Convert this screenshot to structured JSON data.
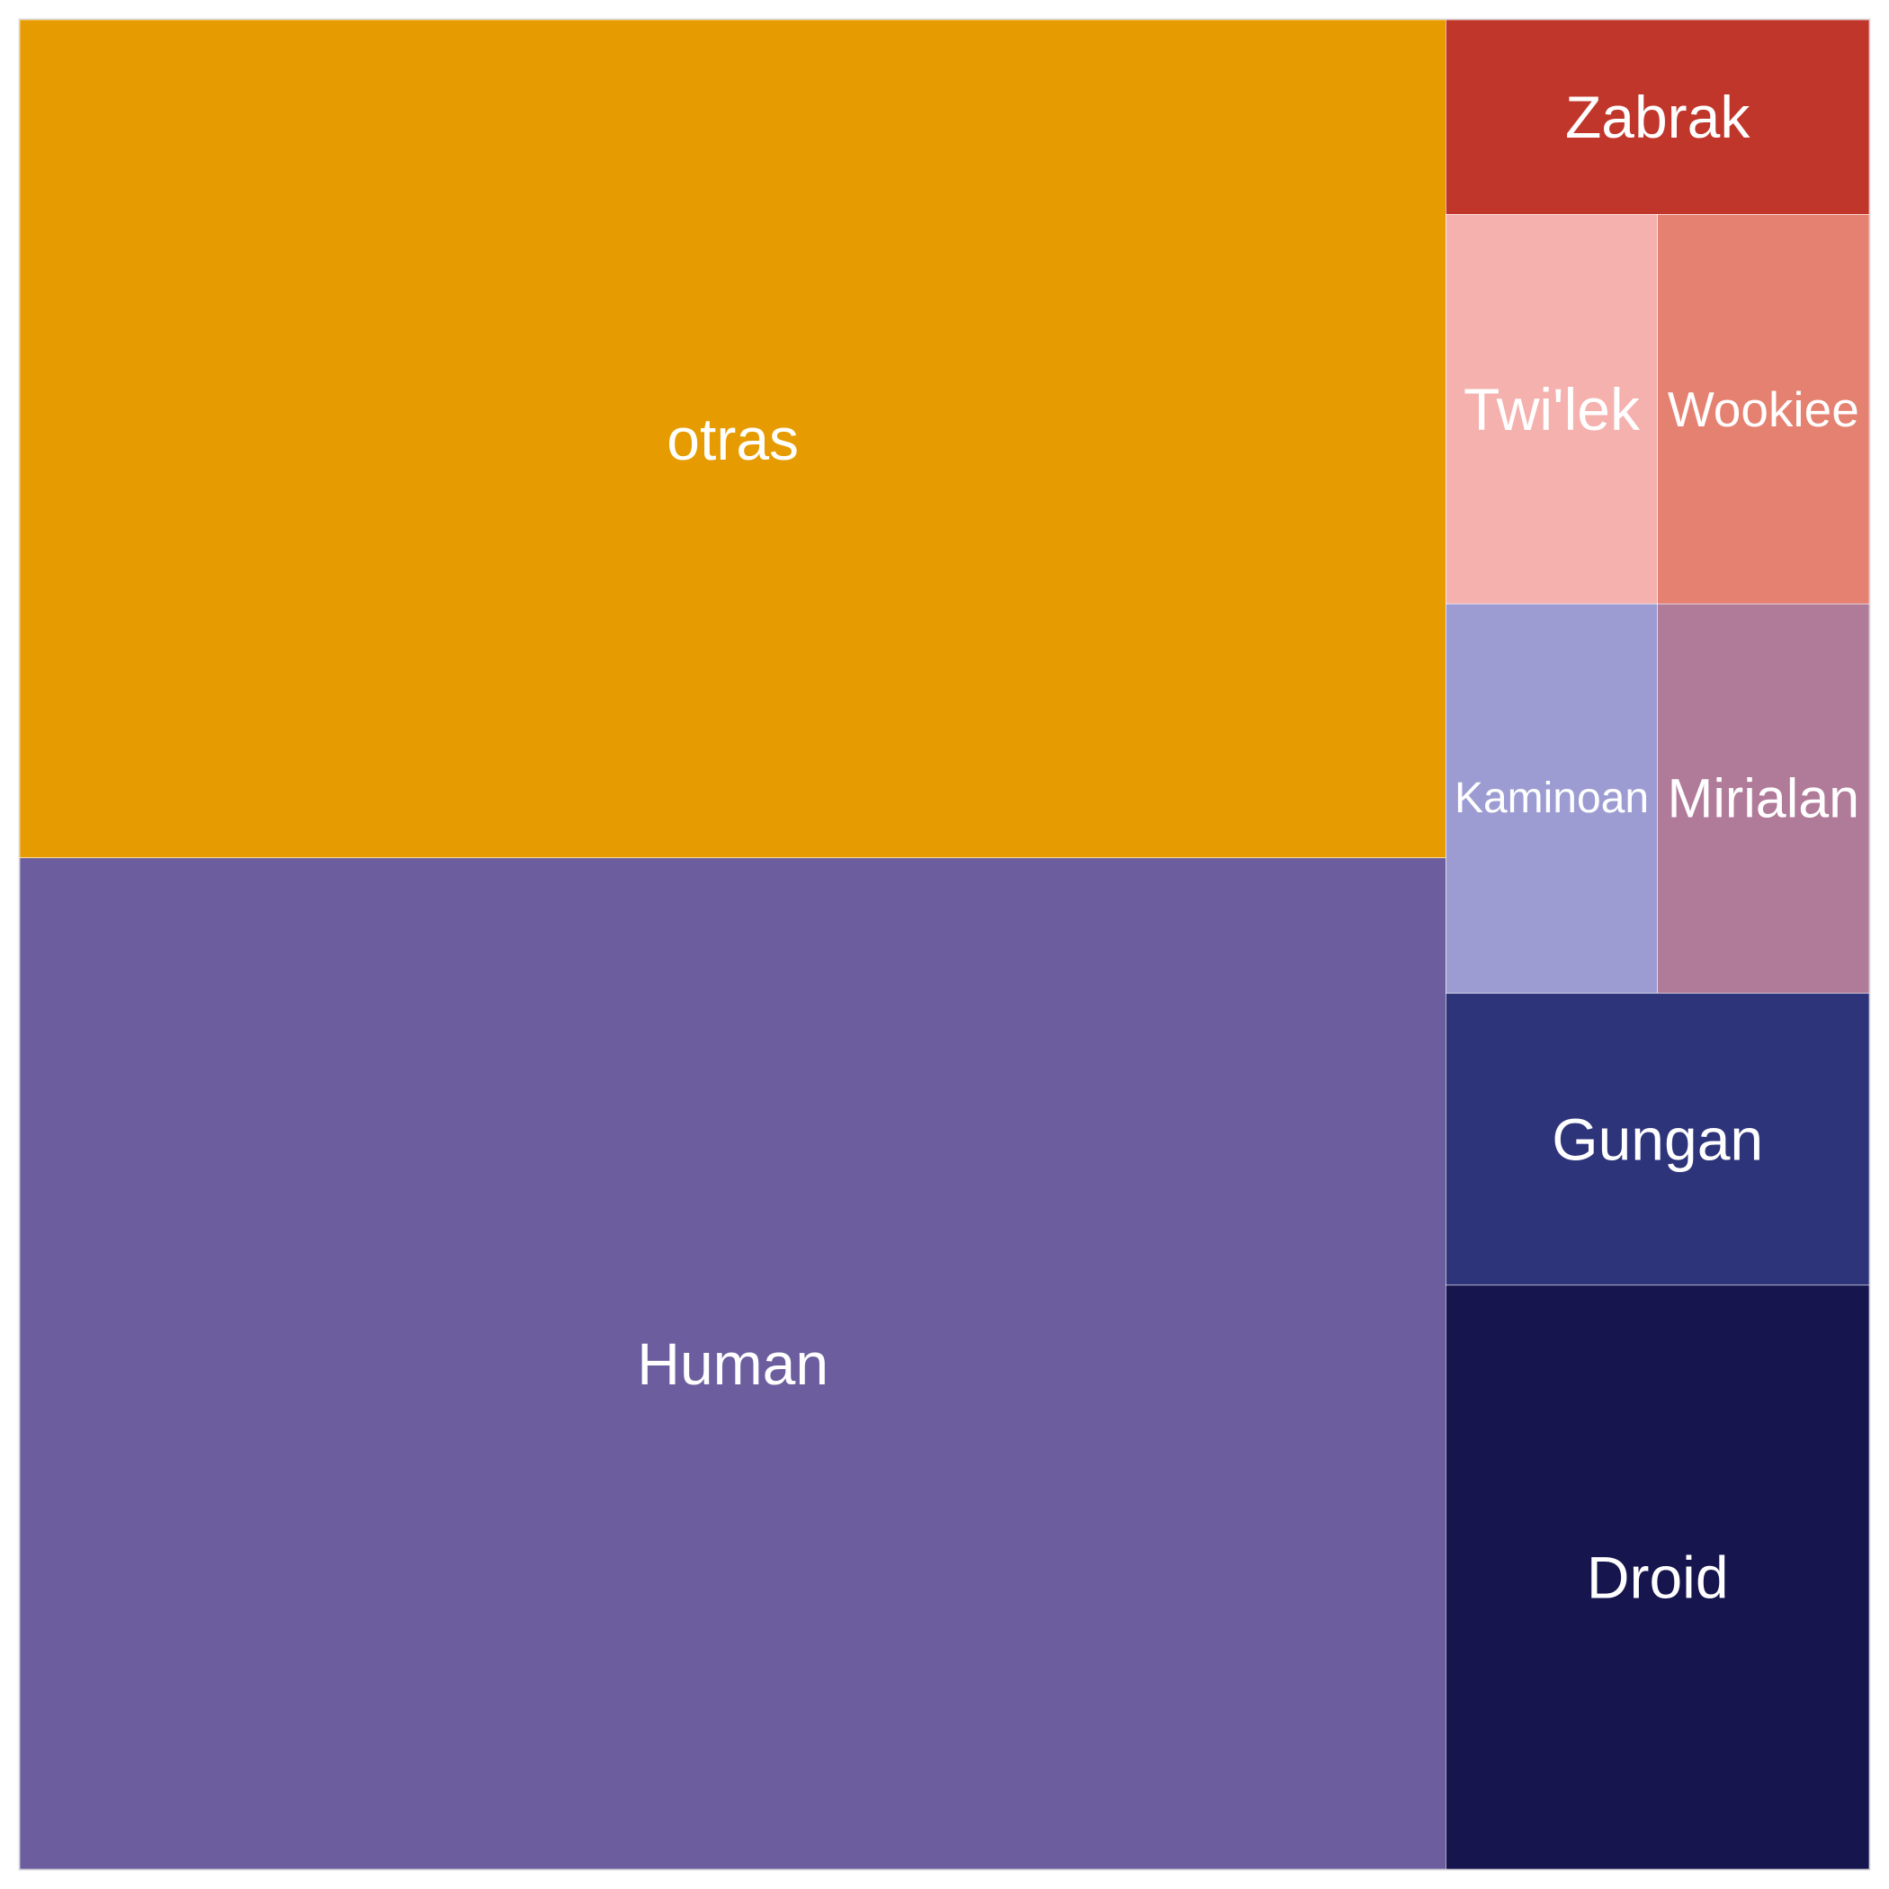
{
  "chart_data": {
    "type": "treemap",
    "title": "",
    "xlabel": "",
    "ylabel": "",
    "legend": "none",
    "grid": false,
    "categories": [
      "Human",
      "otras",
      "Droid",
      "Gungan",
      "Zabrak",
      "Mirialan",
      "Kaminoan",
      "Twi'lek",
      "Wookiee"
    ],
    "values": [
      35,
      29,
      6,
      3,
      2,
      2,
      2,
      2,
      2
    ],
    "colors": [
      "#6c5e9e",
      "#e69c00",
      "#16154e",
      "#2e347a",
      "#c0362b",
      "#b07a99",
      "#9d9cd2",
      "#f5b1ae",
      "#e58171"
    ],
    "label_color": "#ffffff"
  }
}
